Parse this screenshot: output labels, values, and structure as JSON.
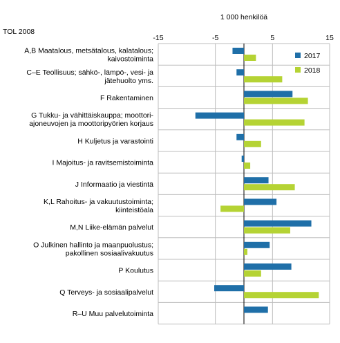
{
  "chart_data": {
    "type": "bar",
    "orientation": "horizontal",
    "title": "",
    "unit_label": "1 000 henkilöä",
    "category_header": "TOL 2008",
    "xlim": [
      -15,
      15
    ],
    "ticks": [
      -15,
      -5,
      5,
      15
    ],
    "tick_labels": [
      "-15",
      "-5",
      "5",
      "15"
    ],
    "grid": true,
    "legend_position": "top-right",
    "categories": [
      [
        "A,B Maatalous, metsätalous, kalatalous;",
        "kaivostoiminta"
      ],
      [
        "C–E Teollisuus; sähkö-, lämpö-, vesi- ja",
        "jätehuolto yms."
      ],
      [
        "F Rakentaminen"
      ],
      [
        "G Tukku- ja vähittäiskauppa; moottori-",
        "ajoneuvojen ja moottoripyörien korjaus"
      ],
      [
        "H Kuljetus ja varastointi"
      ],
      [
        "I Majoitus- ja ravitsemistoiminta"
      ],
      [
        "J Informaatio ja viestintä"
      ],
      [
        "K,L Rahoitus- ja vakuutustoiminta;",
        "kiinteistöala"
      ],
      [
        "M,N Liike-elämän palvelut"
      ],
      [
        "O Julkinen hallinto ja maanpuolustus;",
        "pakollinen sosiaalivakuutus"
      ],
      [
        "P Koulutus"
      ],
      [
        "Q Terveys- ja sosiaalipalvelut"
      ],
      [
        "R–U Muu palvelutoiminta"
      ]
    ],
    "series": [
      {
        "name": "2017",
        "color": "#1f6fa8",
        "values": [
          -2.0,
          -1.3,
          8.5,
          -8.5,
          -1.3,
          -0.4,
          4.3,
          5.7,
          11.8,
          4.5,
          8.3,
          -5.2,
          4.2
        ]
      },
      {
        "name": "2018",
        "color": "#b5d334",
        "values": [
          2.1,
          6.7,
          11.2,
          10.6,
          3.0,
          1.1,
          8.9,
          -4.1,
          8.1,
          0.6,
          3.0,
          13.1,
          0.0
        ]
      }
    ]
  }
}
